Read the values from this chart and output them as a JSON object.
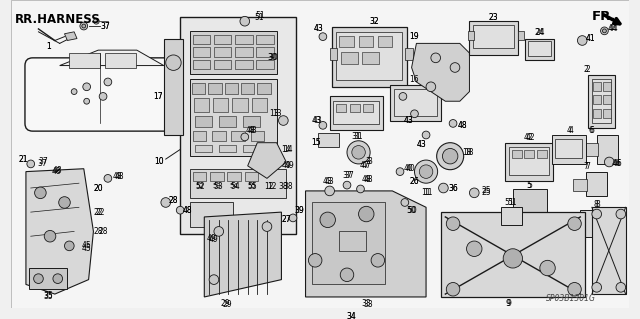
{
  "background_color": "#f0f0f0",
  "header_left": "RR.HARNESS",
  "header_right": "FR.",
  "footer_code": "SP03B1301G",
  "fig_width": 6.4,
  "fig_height": 3.19,
  "dpi": 100,
  "line_color": "#1a1a1a",
  "text_color": "#000000",
  "label_fontsize": 5.5,
  "header_fontsize": 8.5,
  "footer_fontsize": 5.5,
  "gray_fill": "#c8c8c8",
  "light_fill": "#e8e8e8",
  "mid_fill": "#b0b0b0",
  "dark_fill": "#888888"
}
